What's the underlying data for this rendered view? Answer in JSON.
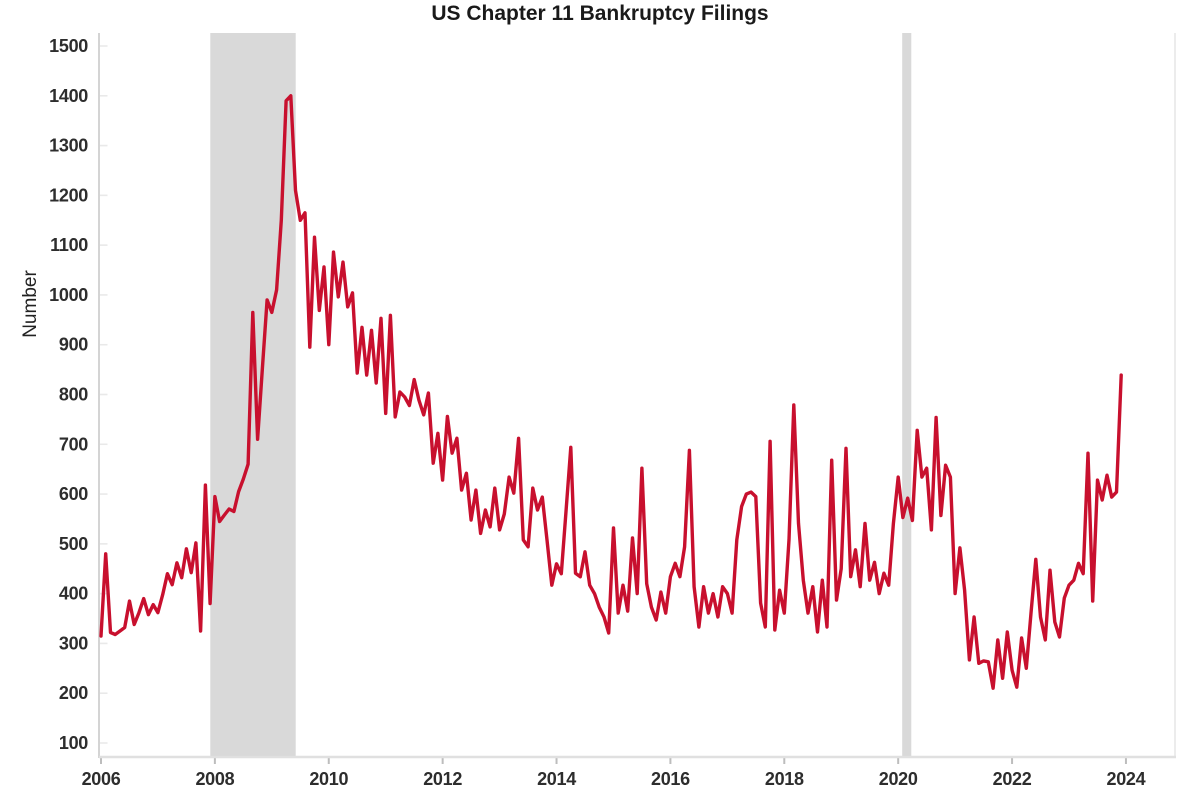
{
  "title": "US Chapter 11 Bankruptcy Filings",
  "colors": {
    "background": "#FFFFFF",
    "line": "#C8102E",
    "recession_band": "#D9D9D9",
    "axis_left": "#D4D4D4",
    "axis_bottom": "#E0E0E0",
    "border_right": "#ECECEC",
    "tick_mark_x": "#BDBDBD",
    "tick_mark_y": "#E9E9E9",
    "tick_text": "#2D2D2D",
    "title_text": "#1A1A1A"
  },
  "chart_data": {
    "type": "line",
    "title": "US Chapter 11 Bankruptcy Filings",
    "xlabel": "",
    "ylabel": "Number",
    "frequency": "monthly",
    "x_start_year": 2006,
    "x_end_year": 2023,
    "xlim": [
      2005.965,
      2024.879
    ],
    "ylim": [
      100,
      1500
    ],
    "y_ticks": [
      100,
      200,
      300,
      400,
      500,
      600,
      700,
      800,
      900,
      1000,
      1100,
      1200,
      1300,
      1400,
      1500
    ],
    "x_ticks": [
      2006,
      2008,
      2010,
      2012,
      2014,
      2016,
      2018,
      2020,
      2022,
      2024
    ],
    "grid": false,
    "legend_position": "none",
    "recession_bands": [
      {
        "name": "great-recession",
        "from": 2007.92,
        "to": 2009.42
      },
      {
        "name": "covid-recession",
        "from": 2020.07,
        "to": 2020.23
      }
    ],
    "series": [
      {
        "name": "Chapter 11 filings",
        "values": [
          315,
          480,
          322,
          318,
          325,
          332,
          385,
          338,
          362,
          390,
          358,
          378,
          362,
          398,
          440,
          418,
          462,
          432,
          490,
          442,
          502,
          325,
          618,
          380,
          595,
          545,
          558,
          570,
          565,
          605,
          630,
          660,
          965,
          710,
          850,
          990,
          965,
          1010,
          1150,
          1390,
          1400,
          1210,
          1150,
          1165,
          895,
          1116,
          969,
          1056,
          900,
          1086,
          996,
          1066,
          976,
          1004,
          843,
          935,
          839,
          929,
          823,
          953,
          762,
          959,
          755,
          805,
          795,
          778,
          830,
          789,
          759,
          803,
          662,
          722,
          628,
          756,
          682,
          712,
          608,
          642,
          548,
          608,
          521,
          568,
          534,
          612,
          528,
          560,
          634,
          602,
          712,
          508,
          494,
          612,
          568,
          594,
          508,
          417,
          460,
          440,
          565,
          694,
          441,
          434,
          484,
          417,
          400,
          373,
          353,
          321,
          532,
          361,
          417,
          365,
          512,
          400,
          652,
          420,
          373,
          347,
          403,
          361,
          434,
          461,
          434,
          494,
          688,
          414,
          333,
          414,
          361,
          400,
          353,
          414,
          400,
          361,
          508,
          575,
          600,
          604,
          595,
          381,
          333,
          706,
          327,
          407,
          361,
          508,
          779,
          541,
          427,
          361,
          414,
          323,
          427,
          333,
          668,
          387,
          450,
          692,
          434,
          488,
          414,
          541,
          427,
          463,
          400,
          441,
          417,
          541,
          634,
          553,
          592,
          547,
          728,
          634,
          652,
          528,
          754,
          557,
          658,
          634,
          400,
          492,
          407,
          267,
          353,
          260,
          265,
          263,
          210,
          307,
          230,
          323,
          246,
          212,
          311,
          250,
          361,
          469,
          353,
          307,
          447,
          343,
          313,
          391,
          417,
          427,
          461,
          440,
          682,
          385,
          628,
          588,
          638,
          594,
          604,
          839
        ]
      }
    ]
  }
}
